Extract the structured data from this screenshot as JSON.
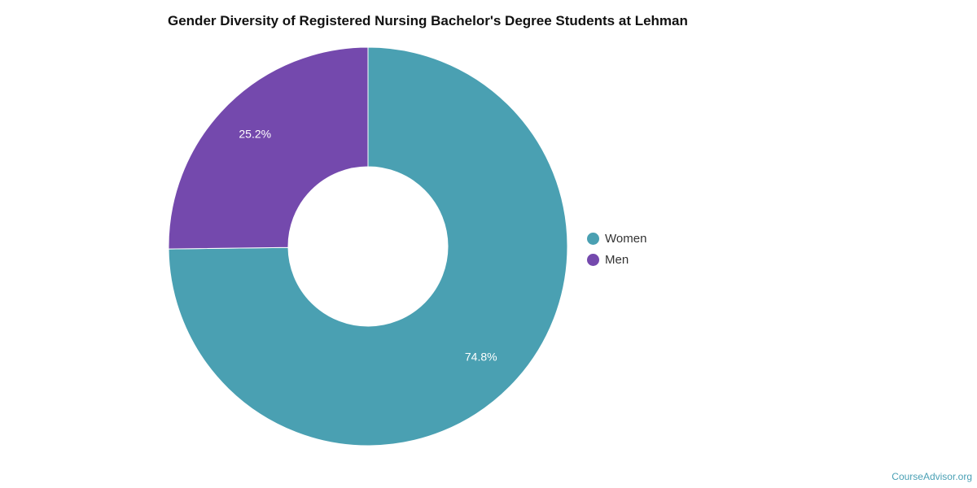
{
  "chart_data": {
    "type": "pie",
    "title": "Gender Diversity of Registered Nursing Bachelor's Degree Students at Lehman",
    "donut": true,
    "slices": [
      {
        "label": "Women",
        "value": 74.8,
        "display": "74.8%",
        "color": "#4aa0b2"
      },
      {
        "label": "Men",
        "value": 25.2,
        "display": "25.2%",
        "color": "#7449ad"
      }
    ],
    "legend_position": "right"
  },
  "footer": {
    "source": "CourseAdvisor.org"
  }
}
